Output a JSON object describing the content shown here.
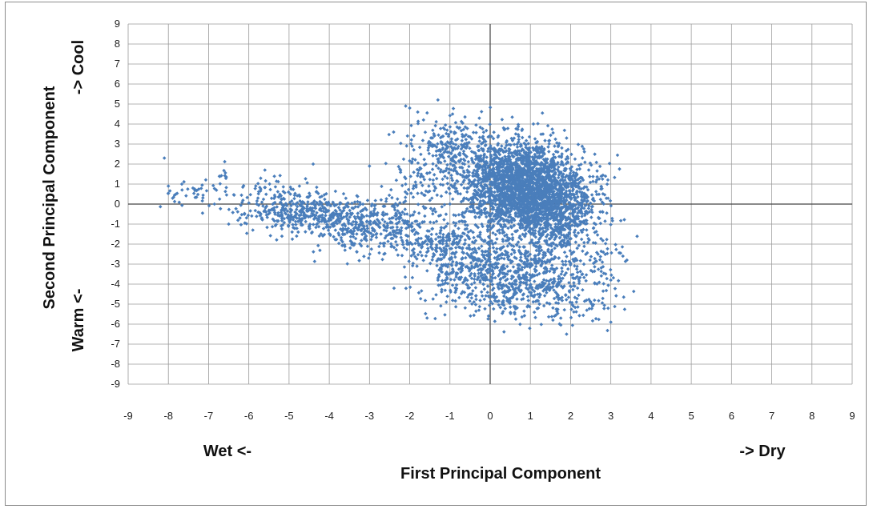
{
  "chart_data": {
    "type": "scatter",
    "xlabel": "First Principal Component",
    "ylabel": "Second Principal Component",
    "annotations": {
      "y_top": "-> Cool",
      "y_bottom": "Warm <-",
      "x_left": "Wet <-",
      "x_right": "-> Dry"
    },
    "xlim": [
      -9,
      9
    ],
    "ylim": [
      -9,
      9
    ],
    "x_ticks": [
      -9,
      -8,
      -7,
      -6,
      -5,
      -4,
      -3,
      -2,
      -1,
      0,
      1,
      2,
      3,
      4,
      5,
      6,
      7,
      8,
      9
    ],
    "y_ticks": [
      9,
      8,
      7,
      6,
      5,
      4,
      3,
      2,
      1,
      0,
      -1,
      -2,
      -3,
      -4,
      -5,
      -6,
      -7,
      -8,
      -9
    ],
    "grid": true,
    "legend": "none",
    "marker_color": "#4a7ebb",
    "series": [
      {
        "clusters": [
          {
            "cx": 0.8,
            "cy": 0.9,
            "sx": 0.75,
            "sy": 1.1,
            "n": 2300
          },
          {
            "cx": 1.6,
            "cy": -0.4,
            "sx": 0.55,
            "sy": 0.9,
            "n": 700
          },
          {
            "cx": 1.0,
            "cy": -3.6,
            "sx": 0.8,
            "sy": 1.0,
            "n": 650
          },
          {
            "cx": -0.5,
            "cy": -3.0,
            "sx": 0.7,
            "sy": 1.0,
            "n": 350
          },
          {
            "cx": -1.3,
            "cy": -1.9,
            "sx": 0.5,
            "sy": 0.6,
            "n": 150
          },
          {
            "cx": -0.9,
            "cy": 2.7,
            "sx": 0.6,
            "sy": 0.8,
            "n": 300
          },
          {
            "cx": -4.2,
            "cy": -0.6,
            "sx": 0.8,
            "sy": 0.5,
            "n": 380
          },
          {
            "cx": -2.8,
            "cy": -1.2,
            "sx": 0.6,
            "sy": 0.7,
            "n": 280
          },
          {
            "cx": -5.3,
            "cy": 0.2,
            "sx": 0.5,
            "sy": 0.6,
            "n": 110
          },
          {
            "cx": -1.8,
            "cy": 0.9,
            "sx": 0.3,
            "sy": 0.5,
            "n": 50
          },
          {
            "cx": -7.3,
            "cy": 0.6,
            "sx": 0.45,
            "sy": 0.4,
            "n": 45
          },
          {
            "cx": -6.6,
            "cy": 1.5,
            "sx": 0.1,
            "sy": 0.3,
            "n": 10
          },
          {
            "cx": -6.2,
            "cy": -0.6,
            "sx": 0.3,
            "sy": 0.2,
            "n": 10
          },
          {
            "cx": 2.8,
            "cy": -3.0,
            "sx": 0.35,
            "sy": 0.7,
            "n": 40
          },
          {
            "cx": 2.6,
            "cy": -5.0,
            "sx": 0.4,
            "sy": 0.6,
            "n": 30
          }
        ],
        "outliers": [
          [
            -8.1,
            2.3
          ],
          [
            -8.0,
            0.9
          ],
          [
            -2.0,
            4.8
          ],
          [
            -2.1,
            4.9
          ],
          [
            -1.8,
            4.6
          ],
          [
            3.3,
            -2.6
          ],
          [
            3.4,
            -2.8
          ],
          [
            3.0,
            -5.9
          ],
          [
            1.9,
            -6.5
          ],
          [
            1.9,
            3.3
          ],
          [
            -6.5,
            -1.0
          ],
          [
            -5.9,
            -1.3
          ],
          [
            -4.4,
            2.0
          ],
          [
            -3.0,
            1.9
          ],
          [
            -1.6,
            2.0
          ],
          [
            3.0,
            -3.8
          ],
          [
            -5.6,
            1.7
          ],
          [
            -2.4,
            3.6
          ]
        ]
      }
    ]
  }
}
